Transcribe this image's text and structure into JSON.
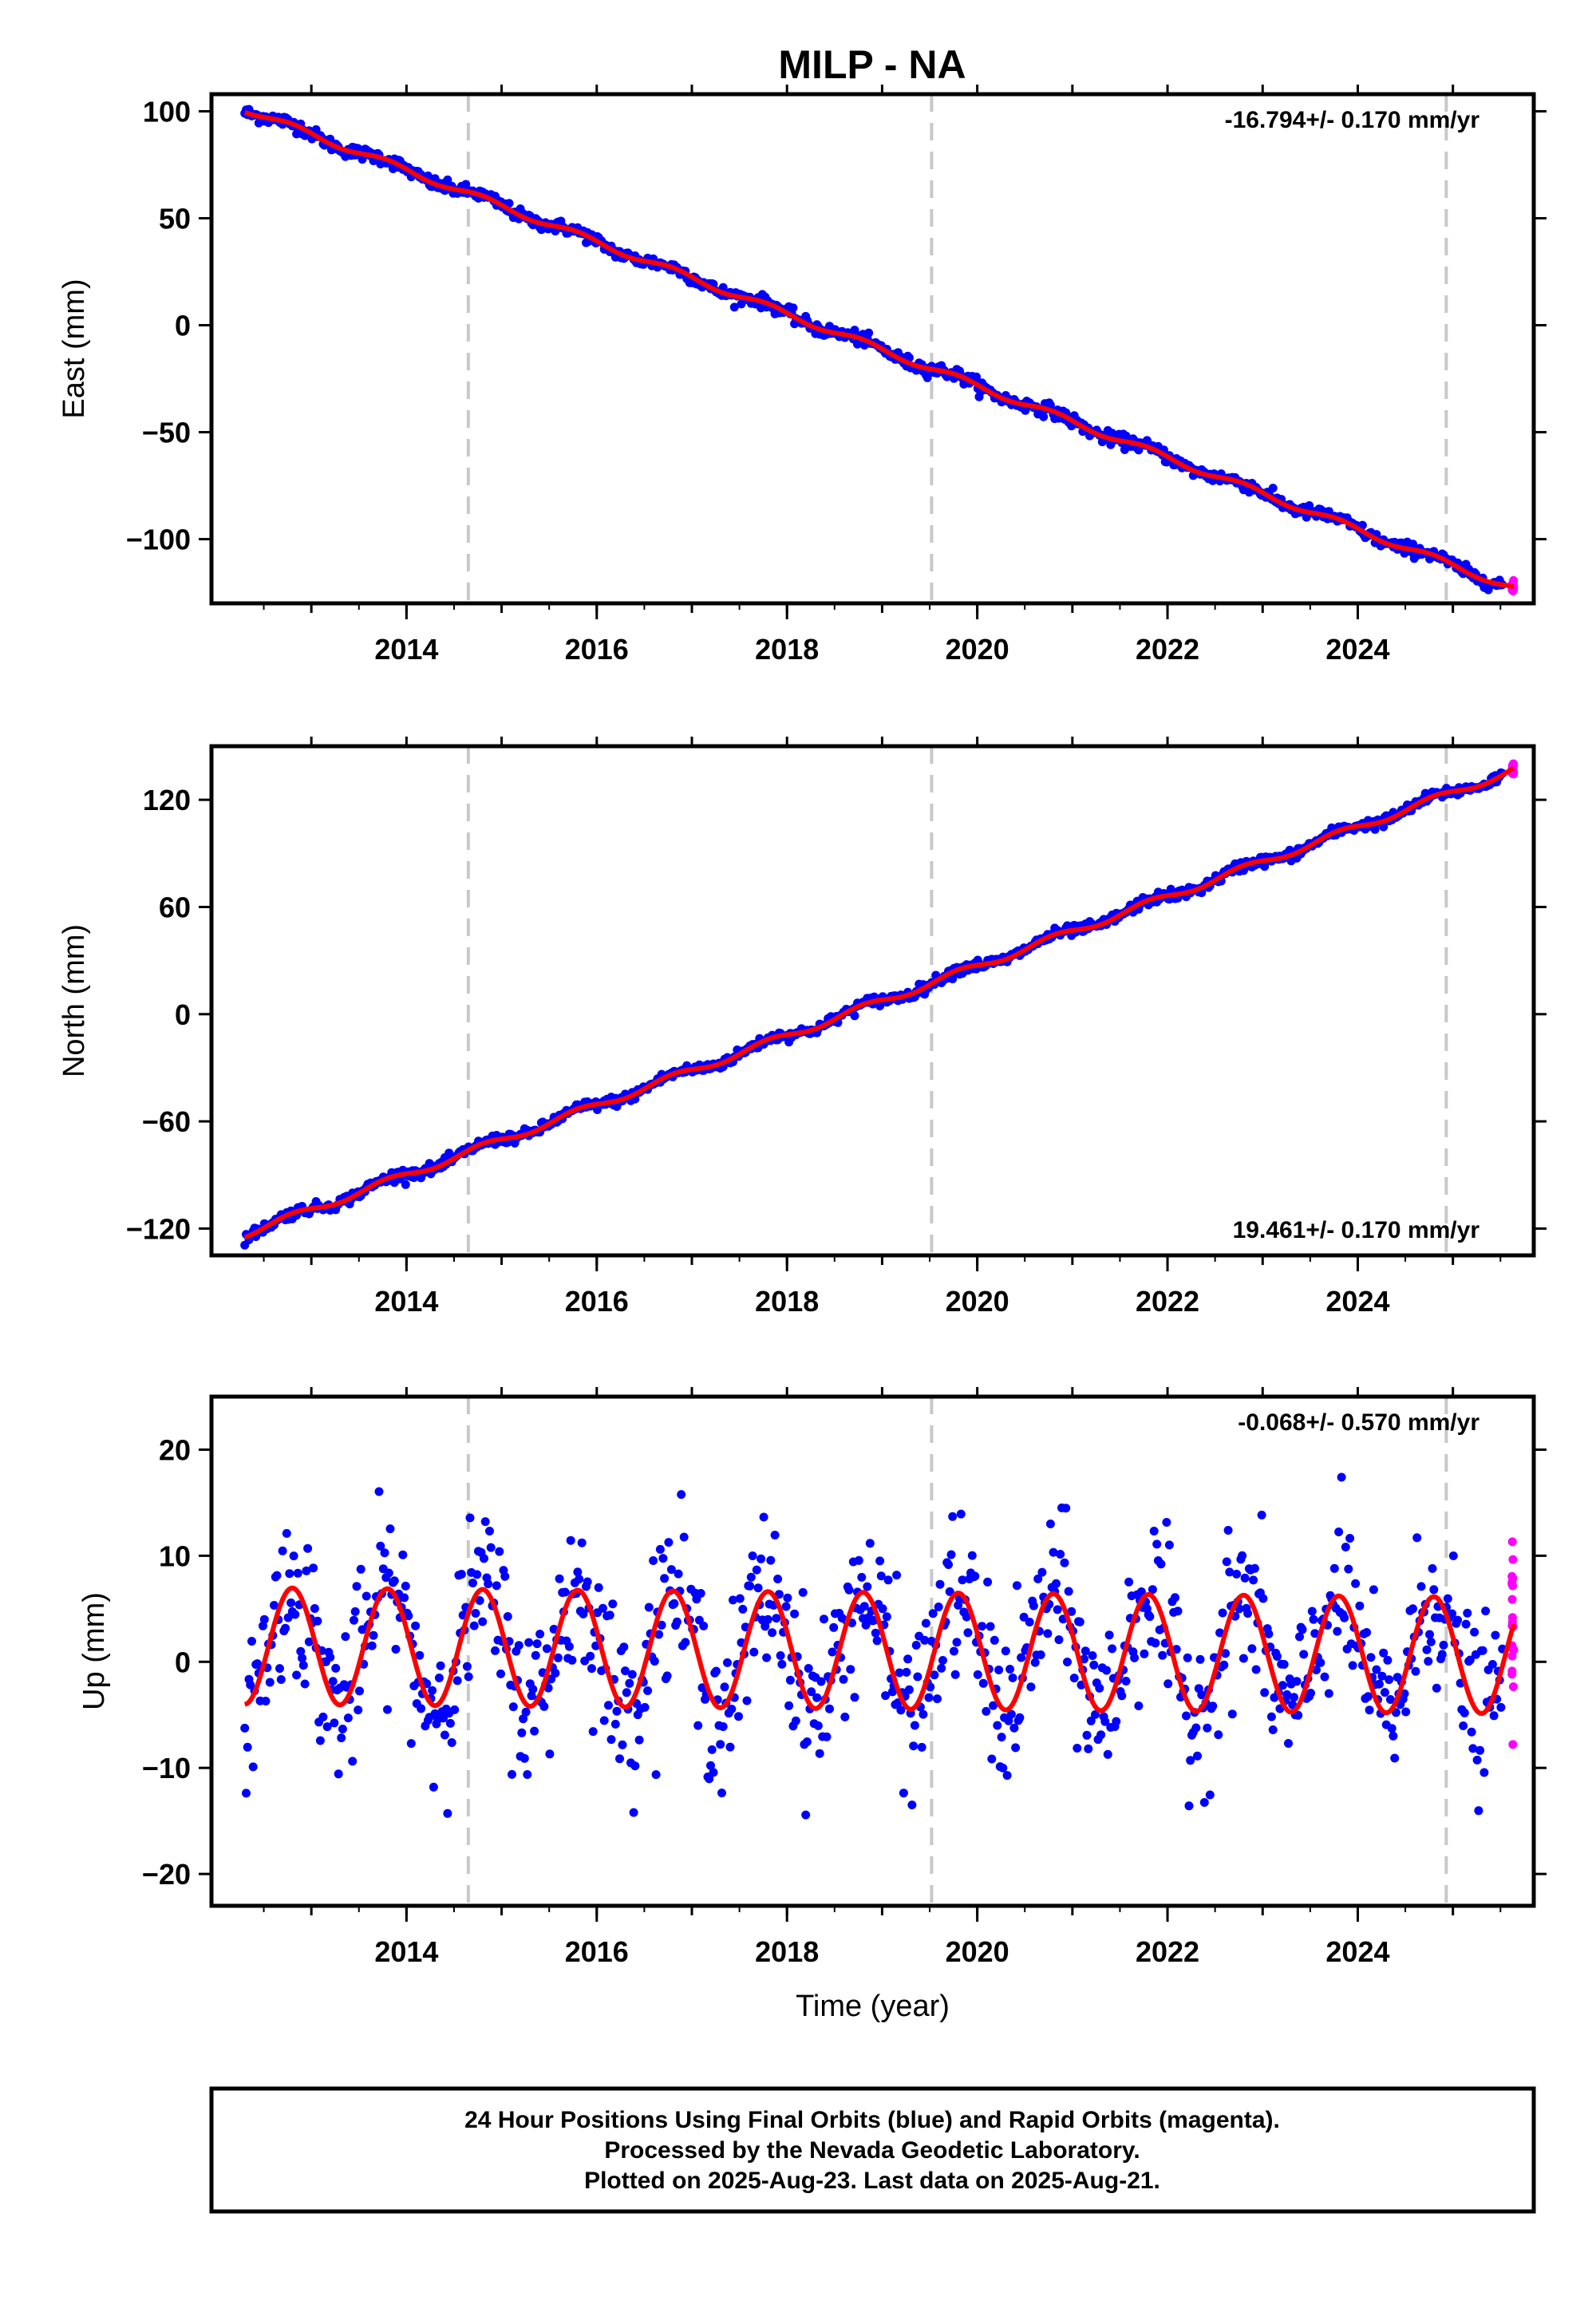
{
  "title": "MILP - NA",
  "chart_data": [
    {
      "type": "scatter",
      "panel": "east",
      "ylabel": "East (mm)",
      "xlabel": "",
      "xlim": [
        2011.95,
        2025.85
      ],
      "ylim": [
        -130,
        108
      ],
      "yticks": [
        100,
        50,
        0,
        -50,
        -100
      ],
      "ytick_labels": [
        "100",
        "50",
        "0",
        "−50",
        "−100"
      ],
      "xticks": [
        2014,
        2016,
        2018,
        2020,
        2022,
        2024
      ],
      "rate_label": "-16.794+/- 0.170 mm/yr",
      "rate_position": "top-right",
      "vlines": [
        2014.65,
        2019.52,
        2024.93
      ],
      "start_year": 2012.3,
      "end_year": 2025.64,
      "model": {
        "offset": 101,
        "slope": -16.794,
        "annual_amp": 1.5,
        "noise": 1.5
      },
      "series": [
        {
          "label": "Final Orbits",
          "color": "#0000ff"
        },
        {
          "label": "Rapid Orbits",
          "color": "#ff00ff"
        },
        {
          "label": "Model",
          "color": "#ff0000"
        }
      ]
    },
    {
      "type": "scatter",
      "panel": "north",
      "ylabel": "North (mm)",
      "xlabel": "",
      "xlim": [
        2011.95,
        2025.85
      ],
      "ylim": [
        -135,
        150
      ],
      "yticks": [
        120,
        60,
        0,
        -60,
        -120
      ],
      "ytick_labels": [
        "120",
        "60",
        "0",
        "−60",
        "−120"
      ],
      "xticks": [
        2014,
        2016,
        2018,
        2020,
        2022,
        2024
      ],
      "rate_label": "19.461+/- 0.170 mm/yr",
      "rate_position": "bottom-right",
      "vlines": [
        2014.65,
        2019.52,
        2024.93
      ],
      "start_year": 2012.3,
      "end_year": 2025.64,
      "model": {
        "offset": -123,
        "slope": 19.461,
        "annual_amp": 2.0,
        "noise": 1.5
      },
      "series": [
        {
          "label": "Final Orbits",
          "color": "#0000ff"
        },
        {
          "label": "Rapid Orbits",
          "color": "#ff00ff"
        },
        {
          "label": "Model",
          "color": "#ff0000"
        }
      ]
    },
    {
      "type": "scatter",
      "panel": "up",
      "ylabel": "Up (mm)",
      "xlabel": "Time (year)",
      "xlim": [
        2011.95,
        2025.85
      ],
      "ylim": [
        -23,
        25
      ],
      "yticks": [
        20,
        10,
        0,
        -10,
        -20
      ],
      "ytick_labels": [
        "20",
        "10",
        "0",
        "−10",
        "−20"
      ],
      "xticks": [
        2014,
        2016,
        2018,
        2020,
        2022,
        2024
      ],
      "rate_label": "-0.068+/- 0.570 mm/yr",
      "rate_position": "top-right",
      "vlines": [
        2014.65,
        2019.52,
        2024.93
      ],
      "start_year": 2012.3,
      "end_year": 2025.64,
      "model": {
        "offset": 1.5,
        "slope": -0.068,
        "annual_amp": 5.5,
        "noise": 3.8
      },
      "series": [
        {
          "label": "Final Orbits",
          "color": "#0000ff"
        },
        {
          "label": "Rapid Orbits",
          "color": "#ff00ff"
        },
        {
          "label": "Model",
          "color": "#ff0000"
        }
      ]
    }
  ],
  "footer": {
    "line1": "24 Hour Positions Using Final Orbits (blue) and Rapid Orbits (magenta).",
    "line2": "Processed by the Nevada Geodetic Laboratory.",
    "line3": "Plotted on 2025-Aug-23. Last data on 2025-Aug-21."
  }
}
